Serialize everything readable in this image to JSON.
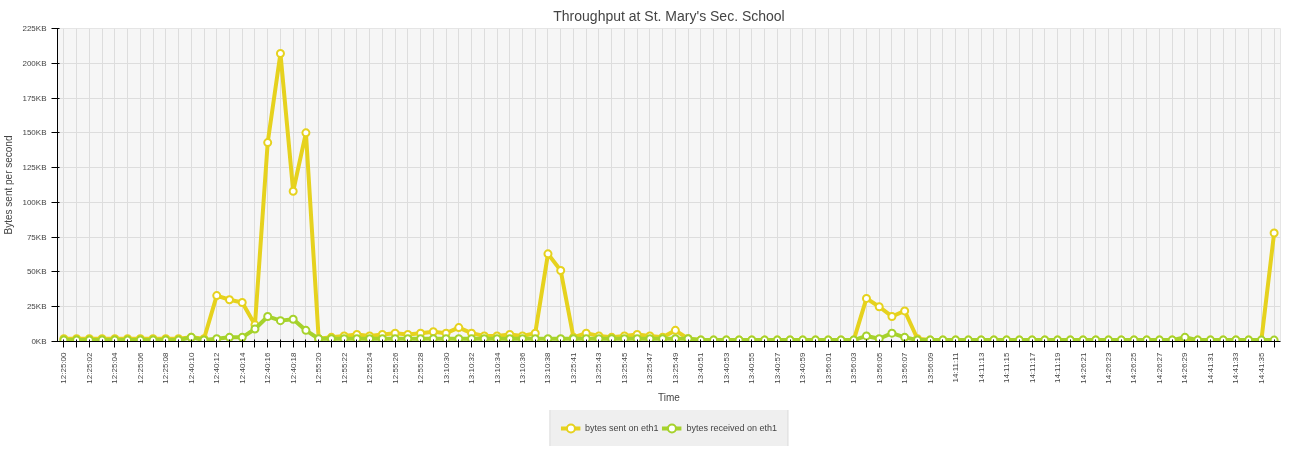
{
  "chart_data": {
    "type": "line",
    "title": "Throughput at St. Mary's Sec. School",
    "xlabel": "Time",
    "ylabel": "Bytes sent per second",
    "categories": [
      "12:25:00",
      null,
      "12:25:02",
      null,
      "12:25:04",
      null,
      "12:25:06",
      null,
      "12:25:08",
      null,
      "12:40:10",
      null,
      "12:40:12",
      null,
      "12:40:14",
      null,
      "12:40:16",
      null,
      "12:40:18",
      null,
      "12:55:20",
      null,
      "12:55:22",
      null,
      "12:55:24",
      null,
      "12:55:26",
      null,
      "12:55:28",
      null,
      "13:10:30",
      null,
      "13:10:32",
      null,
      "13:10:34",
      null,
      "13:10:36",
      null,
      "13:10:38",
      null,
      "13:25:41",
      null,
      "13:25:43",
      null,
      "13:25:45",
      null,
      "13:25:47",
      null,
      "13:25:49",
      null,
      "13:40:51",
      null,
      "13:40:53",
      null,
      "13:40:55",
      null,
      "13:40:57",
      null,
      "13:40:59",
      null,
      "13:56:01",
      null,
      "13:56:03",
      null,
      "13:56:05",
      null,
      "13:56:07",
      null,
      "13:56:09",
      null,
      "14:11:11",
      null,
      "14:11:13",
      null,
      "14:11:15",
      null,
      "14:11:17",
      null,
      "14:11:19",
      null,
      "14:26:21",
      null,
      "14:26:23",
      null,
      "14:26:25",
      null,
      "14:26:27",
      null,
      "14:26:29",
      null,
      "14:41:31",
      null,
      "14:41:33",
      null,
      "14:41:35",
      null
    ],
    "series": [
      {
        "name": "bytes sent on eth1",
        "color": "#e6d21e",
        "values": [
          2,
          2,
          2,
          2,
          2,
          2,
          2,
          2,
          2,
          2,
          3,
          2,
          33,
          30,
          28,
          12,
          143,
          207,
          108,
          150,
          2,
          3,
          4,
          5,
          4,
          5,
          6,
          5,
          6,
          7,
          6,
          10,
          6,
          4,
          4,
          5,
          4,
          6,
          63,
          51,
          3,
          6,
          4,
          3,
          4,
          5,
          4,
          3,
          8,
          2,
          1,
          1,
          1,
          1,
          1,
          1,
          1,
          1,
          1,
          1,
          1,
          1,
          1,
          31,
          25,
          18,
          22,
          2,
          1,
          1,
          1,
          1,
          1,
          1,
          1,
          1,
          1,
          1,
          1,
          1,
          1,
          1,
          1,
          1,
          1,
          1,
          1,
          1,
          1,
          1,
          1,
          1,
          1,
          1,
          1,
          78
        ]
      },
      {
        "name": "bytes received on eth1",
        "color": "#a6d22c",
        "values": [
          1,
          1,
          1,
          1,
          1,
          1,
          1,
          1,
          1,
          1,
          3,
          1,
          2,
          3,
          3,
          9,
          18,
          15,
          16,
          8,
          2,
          2,
          2,
          2,
          2,
          2,
          2,
          2,
          2,
          2,
          2,
          2,
          2,
          2,
          2,
          2,
          2,
          2,
          2,
          2,
          2,
          2,
          2,
          2,
          2,
          2,
          2,
          2,
          2,
          2,
          1,
          1,
          1,
          1,
          1,
          1,
          1,
          1,
          1,
          1,
          1,
          1,
          1,
          4,
          2,
          6,
          3,
          1,
          1,
          1,
          1,
          1,
          1,
          1,
          1,
          1,
          1,
          1,
          1,
          1,
          1,
          1,
          1,
          1,
          1,
          1,
          1,
          1,
          3,
          1,
          1,
          1,
          1,
          1,
          1,
          1
        ]
      }
    ],
    "ylim": [
      0,
      225
    ],
    "yticks": [
      {
        "value": 0,
        "label": "0KB"
      },
      {
        "value": 25,
        "label": "25KB"
      },
      {
        "value": 50,
        "label": "50KB"
      },
      {
        "value": 75,
        "label": "75KB"
      },
      {
        "value": 100,
        "label": "100KB"
      },
      {
        "value": 125,
        "label": "125KB"
      },
      {
        "value": 150,
        "label": "150KB"
      },
      {
        "value": 175,
        "label": "175KB"
      },
      {
        "value": 200,
        "label": "200KB"
      },
      {
        "value": 225,
        "label": "225KB"
      }
    ],
    "grid": true,
    "legend": "bottom",
    "marker": "circle",
    "line_style": "solid"
  }
}
